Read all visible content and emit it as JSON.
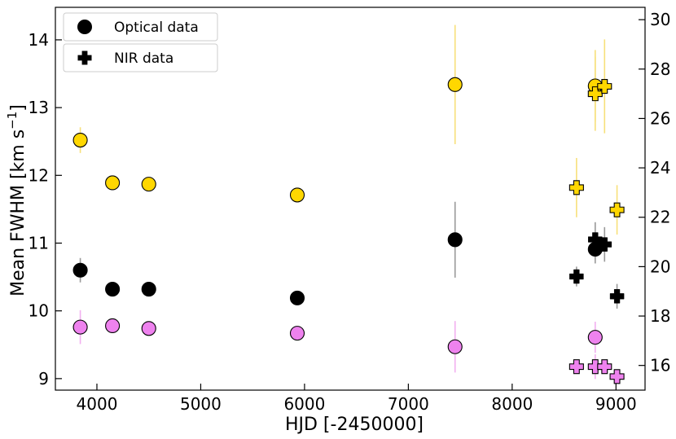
{
  "chart_data": {
    "type": "scatter",
    "xlabel": "HJD [-2450000]",
    "ylabel": "Mean FWHM [km s",
    "ylabel_sup": "−1",
    "ylabel_close": "]",
    "xlim": [
      3600,
      9280
    ],
    "ylim_left": [
      8.83,
      14.48
    ],
    "ylim_right": [
      15.0,
      30.5
    ],
    "grid": false,
    "legend_position": "top-left",
    "x_ticks": [
      4000,
      5000,
      6000,
      7000,
      8000,
      9000
    ],
    "x_tick_labels": [
      "4000",
      "5000",
      "6000",
      "7000",
      "8000",
      "9000"
    ],
    "y_left_ticks": [
      9,
      10,
      11,
      12,
      13,
      14
    ],
    "y_left_tick_labels": [
      "9",
      "10",
      "11",
      "12",
      "13",
      "14"
    ],
    "y_right_ticks": [
      16,
      18,
      20,
      22,
      24,
      26,
      28,
      30
    ],
    "y_right_tick_labels": [
      "16",
      "18",
      "20",
      "22",
      "24",
      "26",
      "28",
      "30"
    ],
    "legend": [
      {
        "label": "Optical data",
        "marker": "circle"
      },
      {
        "label": "NIR data",
        "marker": "plus"
      }
    ],
    "colors": {
      "gold": "#ffd700",
      "violet": "#ee82ee",
      "black": "#000000",
      "gold_err": "#f7e07a",
      "violet_err": "#f2b0f0",
      "black_err": "#999999"
    },
    "series": [
      {
        "axis": "left",
        "marker": "circle",
        "color": "gold",
        "points": [
          {
            "x": 3840,
            "y": 12.52,
            "yerr": 0.19
          },
          {
            "x": 4150,
            "y": 11.89,
            "yerr": 0
          },
          {
            "x": 4500,
            "y": 11.87,
            "yerr": 0
          },
          {
            "x": 5930,
            "y": 11.71,
            "yerr": 0
          },
          {
            "x": 7450,
            "y": 13.34,
            "yerr": 0.88
          },
          {
            "x": 8800,
            "y": 13.32,
            "yerr": 0.53
          }
        ]
      },
      {
        "axis": "left",
        "marker": "circle",
        "color": "black",
        "points": [
          {
            "x": 3840,
            "y": 10.6,
            "yerr": 0.18
          },
          {
            "x": 4150,
            "y": 10.32,
            "yerr": 0
          },
          {
            "x": 4500,
            "y": 10.32,
            "yerr": 0
          },
          {
            "x": 5930,
            "y": 10.19,
            "yerr": 0
          },
          {
            "x": 7450,
            "y": 11.05,
            "yerr": 0.56
          },
          {
            "x": 8800,
            "y": 10.91,
            "yerr": 0.21
          }
        ]
      },
      {
        "axis": "left",
        "marker": "circle",
        "color": "violet",
        "points": [
          {
            "x": 3840,
            "y": 9.76,
            "yerr": 0.25
          },
          {
            "x": 4150,
            "y": 9.78,
            "yerr": 0
          },
          {
            "x": 4500,
            "y": 9.74,
            "yerr": 0
          },
          {
            "x": 5930,
            "y": 9.67,
            "yerr": 0
          },
          {
            "x": 7450,
            "y": 9.47,
            "yerr": 0.38
          },
          {
            "x": 8800,
            "y": 9.61,
            "yerr": 0.23
          }
        ]
      },
      {
        "axis": "right",
        "marker": "plus",
        "color": "gold",
        "points": [
          {
            "x": 8620,
            "y": 23.2,
            "yerr": 1.2
          },
          {
            "x": 8800,
            "y": 27.0,
            "yerr": 1.5
          },
          {
            "x": 8890,
            "y": 27.3,
            "yerr": 1.9
          },
          {
            "x": 9010,
            "y": 22.3,
            "yerr": 1.0
          }
        ]
      },
      {
        "axis": "right",
        "marker": "plus",
        "color": "black",
        "points": [
          {
            "x": 8620,
            "y": 19.6,
            "yerr": 0.4
          },
          {
            "x": 8800,
            "y": 21.1,
            "yerr": 0.7
          },
          {
            "x": 8890,
            "y": 20.9,
            "yerr": 0.7
          },
          {
            "x": 9010,
            "y": 18.8,
            "yerr": 0.5
          }
        ]
      },
      {
        "axis": "right",
        "marker": "plus",
        "color": "violet",
        "points": [
          {
            "x": 8620,
            "y": 15.95,
            "yerr": 0
          },
          {
            "x": 8800,
            "y": 15.95,
            "yerr": 0.5
          },
          {
            "x": 8890,
            "y": 15.95,
            "yerr": 0
          },
          {
            "x": 9010,
            "y": 15.55,
            "yerr": 0
          }
        ]
      }
    ]
  }
}
